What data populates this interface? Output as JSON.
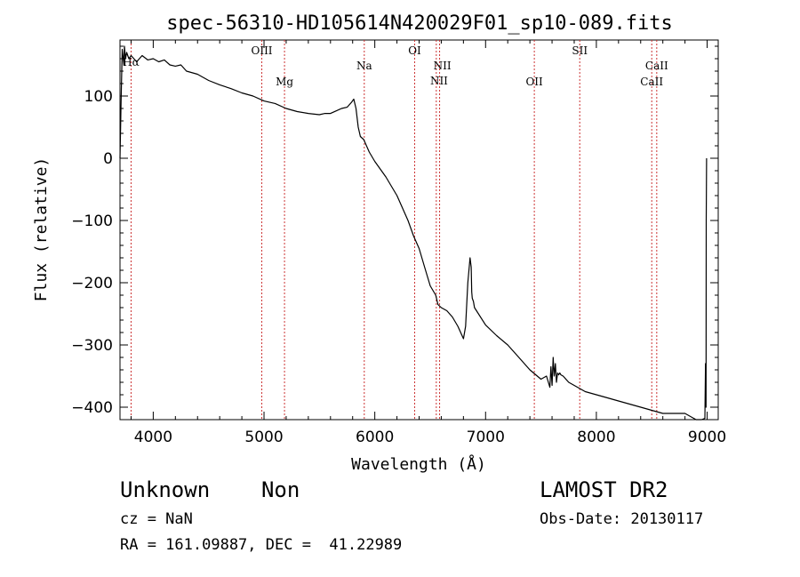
{
  "chart_data": {
    "type": "line",
    "title": "spec-56310-HD105614N420029F01_sp10-089.fits",
    "xlabel": "Wavelength (Å)",
    "ylabel": "Flux (relative)",
    "xlim": [
      3700,
      9100
    ],
    "ylim": [
      -420,
      190
    ],
    "xticks": [
      4000,
      5000,
      6000,
      7000,
      8000,
      9000
    ],
    "yticks": [
      100,
      0,
      -100,
      -200,
      -300,
      -400
    ],
    "ytick_labels": [
      "100",
      "0",
      "−100",
      "−200",
      "−300",
      "−400"
    ],
    "grid": false,
    "series": [
      {
        "x": [
          3700,
          3710,
          3720,
          3735,
          3740,
          3750,
          3760,
          3780,
          3800,
          3850,
          3900,
          3950,
          4000,
          4050,
          4100,
          4150,
          4200,
          4250,
          4300,
          4400,
          4500,
          4600,
          4700,
          4800,
          4900,
          5000,
          5100,
          5200,
          5300,
          5400,
          5500,
          5550,
          5600,
          5650,
          5700,
          5750,
          5790,
          5810,
          5830,
          5850,
          5870,
          5900,
          5950,
          6000,
          6100,
          6200,
          6300,
          6350,
          6400,
          6450,
          6500,
          6550,
          6570,
          6600,
          6650,
          6700,
          6750,
          6800,
          6820,
          6840,
          6860,
          6870,
          6875,
          6880,
          6890,
          6900,
          7000,
          7100,
          7200,
          7300,
          7400,
          7500,
          7550,
          7580,
          7590,
          7600,
          7610,
          7620,
          7630,
          7640,
          7650,
          7660,
          7670,
          7680,
          7700,
          7750,
          7800,
          7900,
          8000,
          8100,
          8200,
          8300,
          8400,
          8500,
          8600,
          8700,
          8800,
          8850,
          8900,
          8950,
          8980,
          8985,
          8990,
          8992,
          8995
        ],
        "y": [
          0,
          90,
          175,
          150,
          180,
          160,
          170,
          160,
          165,
          155,
          165,
          158,
          160,
          155,
          158,
          150,
          148,
          150,
          140,
          135,
          125,
          118,
          112,
          105,
          100,
          92,
          88,
          80,
          75,
          72,
          70,
          72,
          72,
          76,
          80,
          82,
          90,
          95,
          80,
          50,
          35,
          30,
          10,
          -5,
          -30,
          -60,
          -100,
          -125,
          -145,
          -175,
          -205,
          -220,
          -235,
          -240,
          -245,
          -255,
          -270,
          -290,
          -270,
          -200,
          -160,
          -175,
          -215,
          -225,
          -230,
          -240,
          -268,
          -285,
          -300,
          -320,
          -340,
          -355,
          -350,
          -368,
          -335,
          -365,
          -320,
          -350,
          -330,
          -360,
          -345,
          -348,
          -345,
          -348,
          -350,
          -360,
          -365,
          -375,
          -380,
          -385,
          -390,
          -395,
          -400,
          -405,
          -410,
          -410,
          -410,
          -415,
          -420,
          -420,
          -418,
          -330,
          -400,
          -100,
          0
        ]
      }
    ],
    "lines": [
      {
        "label": "Hα",
        "x": 3800,
        "lx": 3800,
        "ly": 74
      },
      {
        "label": "OIII",
        "x": 4980,
        "lx": 4980,
        "ly": 61
      },
      {
        "label": "Mg",
        "x": 5185,
        "lx": 5185,
        "ly": 96
      },
      {
        "label": "Na",
        "x": 5905,
        "lx": 5905,
        "ly": 78
      },
      {
        "label": "OI",
        "x": 6360,
        "lx": 6360,
        "ly": 61
      },
      {
        "label": "NII",
        "x": 6555,
        "lx": 6580,
        "ly": 95
      },
      {
        "label": "NII",
        "x": 6585,
        "lx": 6610,
        "ly": 78
      },
      {
        "label": "OII",
        "x": 7440,
        "lx": 7440,
        "ly": 96
      },
      {
        "label": "SII",
        "x": 7850,
        "lx": 7850,
        "ly": 61
      },
      {
        "label": "CaII",
        "x": 8500,
        "lx": 8500,
        "ly": 96
      },
      {
        "label": "CaII",
        "x": 8545,
        "lx": 8545,
        "ly": 78
      }
    ]
  },
  "info": {
    "object": "Unknown    Non",
    "survey": "LAMOST DR2",
    "cz": "cz = NaN",
    "obs_date": "Obs-Date: 20130117",
    "radec": "RA = 161.09887, DEC =  41.22989"
  }
}
